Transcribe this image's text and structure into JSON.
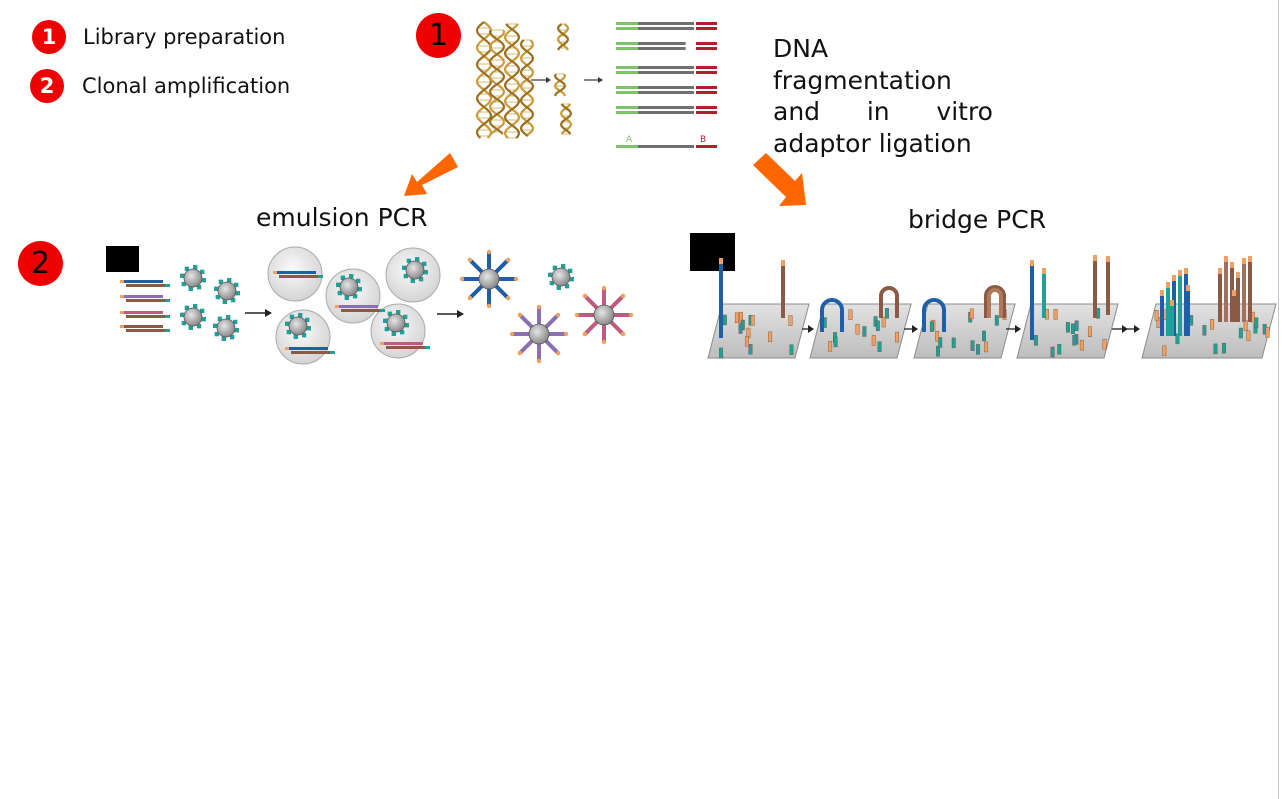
{
  "legend": [
    {
      "number": "1",
      "label": "Library preparation"
    },
    {
      "number": "2",
      "label": "Clonal amplification"
    }
  ],
  "step1": {
    "badge": "1",
    "caption_lines": [
      "DNA",
      "fragmentation",
      "and in vitro",
      "adaptor ligation"
    ],
    "adapter_label_a": "A",
    "adapter_label_b": "B"
  },
  "step2": {
    "badge": "2",
    "left_title": "emulsion PCR",
    "right_title": "bridge PCR"
  },
  "colors": {
    "badge_red": "#ee0000",
    "arrow_orange": "#ff6600",
    "adapter_green": "#7cc36a",
    "adapter_red": "#b0202e",
    "fragment_gray": "#707070",
    "strand_blue": "#1f5fa8",
    "strand_teal": "#1fa09a",
    "strand_brown": "#8a5a44",
    "primer_orange": "#f0a060",
    "bead_gray": "#9a9a9a",
    "helix_gold": "#c89a3a"
  }
}
